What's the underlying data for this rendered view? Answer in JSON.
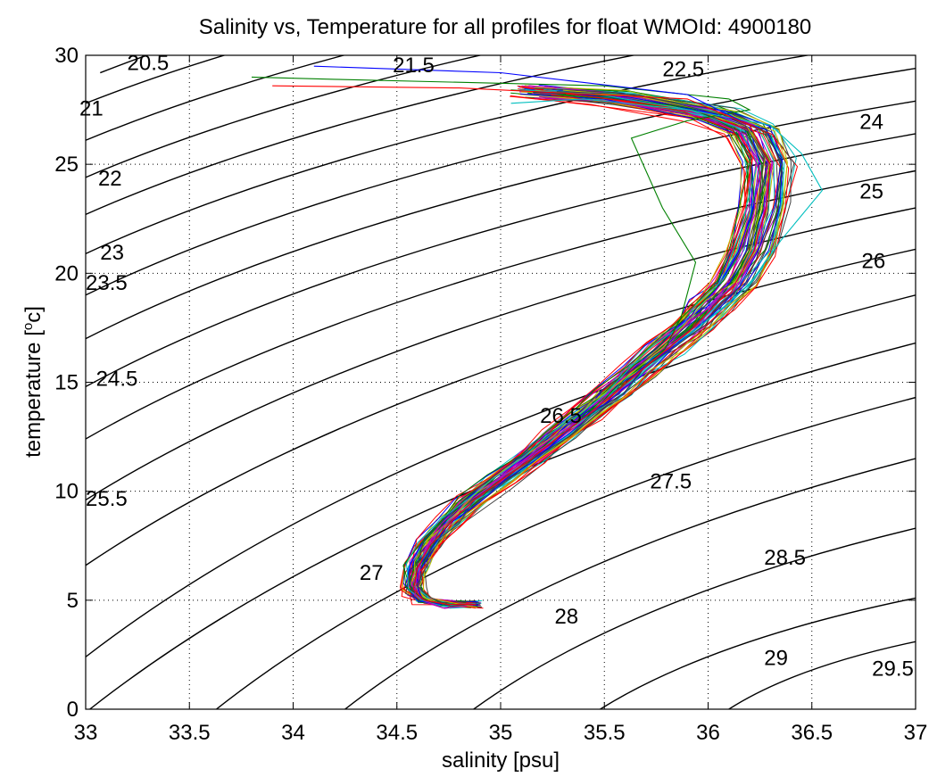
{
  "chart_data": {
    "type": "line",
    "title": "Salinity vs, Temperature for all profiles for float WMOId: 4900180",
    "xlabel": "salinity [psu]",
    "ylabel_main": "temperature [",
    "ylabel_sup": "o",
    "ylabel_end": "c]",
    "xlim": [
      33,
      37
    ],
    "ylim": [
      0,
      30
    ],
    "grid": "dotted",
    "x_ticks": [
      33,
      33.5,
      34,
      34.5,
      35,
      35.5,
      36,
      36.5,
      37
    ],
    "x_tick_labels": [
      "33",
      "33.5",
      "34",
      "34.5",
      "35",
      "35.5",
      "36",
      "36.5",
      "37"
    ],
    "y_ticks": [
      0,
      5,
      10,
      15,
      20,
      25,
      30
    ],
    "y_tick_labels": [
      "0",
      "5",
      "10",
      "15",
      "20",
      "25",
      "30"
    ],
    "density_contours": [
      {
        "level": "20.5",
        "x": [
          33.07,
          37
        ],
        "y": [
          29.2,
          37.5
        ]
      },
      {
        "level": "21",
        "x": [
          33,
          37
        ],
        "y": [
          27.8,
          36.3
        ]
      },
      {
        "level": "21.5",
        "x": [
          33,
          37
        ],
        "y": [
          26.1,
          35
        ]
      },
      {
        "level": "22",
        "x": [
          33,
          37
        ],
        "y": [
          24.4,
          33.6
        ]
      },
      {
        "level": "22.5",
        "x": [
          33,
          37
        ],
        "y": [
          22.7,
          32.2
        ]
      },
      {
        "level": "23",
        "x": [
          33,
          37
        ],
        "y": [
          20.9,
          30.8
        ]
      },
      {
        "level": "23.5",
        "x": [
          33,
          37
        ],
        "y": [
          19.0,
          29.4
        ]
      },
      {
        "level": "24",
        "x": [
          33,
          37
        ],
        "y": [
          17.0,
          27.9
        ]
      },
      {
        "level": "24.5",
        "x": [
          33,
          37
        ],
        "y": [
          14.8,
          26.4
        ]
      },
      {
        "level": "25",
        "x": [
          33,
          37
        ],
        "y": [
          12.4,
          24.7
        ]
      },
      {
        "level": "25.5",
        "x": [
          33,
          37
        ],
        "y": [
          9.6,
          23.0
        ]
      },
      {
        "level": "26",
        "x": [
          33,
          37
        ],
        "y": [
          6.6,
          21.1
        ]
      },
      {
        "level": "26.5",
        "x": [
          33,
          37
        ],
        "y": [
          2.4,
          19.0
        ]
      },
      {
        "level": "27",
        "x": [
          33.02,
          37
        ],
        "y": [
          0,
          16.8
        ]
      },
      {
        "level": "27.5",
        "x": [
          33.63,
          37
        ],
        "y": [
          0,
          14.3
        ]
      },
      {
        "level": "28",
        "x": [
          34.25,
          37
        ],
        "y": [
          0,
          11.5
        ]
      },
      {
        "level": "28.5",
        "x": [
          34.87,
          37
        ],
        "y": [
          0,
          8.3
        ]
      },
      {
        "level": "29",
        "x": [
          35.48,
          37
        ],
        "y": [
          0,
          5.1
        ]
      },
      {
        "level": "29.5",
        "x": [
          36.1,
          37
        ],
        "y": [
          0,
          3.1
        ]
      }
    ],
    "contour_labels": [
      {
        "text": "20.5",
        "x": 33.2,
        "y": 29.7
      },
      {
        "text": "21",
        "x": 32.97,
        "y": 27.6
      },
      {
        "text": "21.5",
        "x": 34.48,
        "y": 29.6
      },
      {
        "text": "22",
        "x": 33.06,
        "y": 24.4
      },
      {
        "text": "22.5",
        "x": 35.78,
        "y": 29.4
      },
      {
        "text": "23",
        "x": 33.07,
        "y": 21.0
      },
      {
        "text": "23.5",
        "x": 33.0,
        "y": 19.6
      },
      {
        "text": "24",
        "x": 36.73,
        "y": 27.0
      },
      {
        "text": "24.5",
        "x": 33.05,
        "y": 15.2
      },
      {
        "text": "25",
        "x": 36.73,
        "y": 23.8
      },
      {
        "text": "25.5",
        "x": 33.0,
        "y": 9.7
      },
      {
        "text": "26",
        "x": 36.74,
        "y": 20.6
      },
      {
        "text": "26.5",
        "x": 35.19,
        "y": 13.5
      },
      {
        "text": "27",
        "x": 34.32,
        "y": 6.3
      },
      {
        "text": "27.5",
        "x": 35.72,
        "y": 10.5
      },
      {
        "text": "28",
        "x": 35.26,
        "y": 4.3
      },
      {
        "text": "28.5",
        "x": 36.27,
        "y": 7.0
      },
      {
        "text": "29",
        "x": 36.27,
        "y": 2.4
      },
      {
        "text": "29.5",
        "x": 36.79,
        "y": 1.9
      }
    ],
    "profile_colors": [
      "#0000ff",
      "#008000",
      "#ff0000",
      "#00bfbf",
      "#bf00bf",
      "#bfbf00",
      "#404040"
    ],
    "profile_count": 70,
    "representative_profile": {
      "salinity": [
        34.88,
        34.75,
        34.63,
        34.58,
        34.6,
        34.66,
        34.75,
        34.86,
        35.0,
        35.15,
        35.28,
        35.42,
        35.55,
        35.67,
        35.8,
        35.93,
        36.03,
        36.13,
        36.22,
        36.28,
        36.3,
        36.22,
        36.02,
        35.58,
        35.2
      ],
      "temperature": [
        4.8,
        4.8,
        5.0,
        5.5,
        6.5,
        7.5,
        8.5,
        9.5,
        10.5,
        11.5,
        12.5,
        13.5,
        14.5,
        15.5,
        16.5,
        17.5,
        18.5,
        19.5,
        21.0,
        23.0,
        25.0,
        26.5,
        27.3,
        28.0,
        28.3
      ]
    },
    "outlier_profiles": [
      {
        "color": "#008000",
        "salinity": [
          34.88,
          34.75,
          34.63,
          34.58,
          34.6,
          34.66,
          34.75,
          34.86,
          35.0,
          35.15,
          35.28,
          35.42,
          35.55,
          35.67,
          35.79,
          35.87,
          35.94,
          35.78,
          35.63,
          35.9,
          36.2,
          36.1,
          35.5,
          34.2,
          33.8
        ],
        "temperature": [
          4.8,
          4.8,
          5.0,
          5.5,
          6.5,
          7.5,
          8.5,
          9.5,
          10.5,
          11.5,
          12.5,
          13.5,
          14.5,
          15.5,
          16.5,
          18.0,
          20.5,
          23.0,
          26.2,
          27.0,
          27.5,
          28.0,
          28.6,
          28.9,
          29.0
        ]
      },
      {
        "color": "#00bfbf",
        "salinity": [
          34.88,
          34.75,
          34.63,
          34.58,
          34.6,
          34.66,
          34.75,
          34.86,
          35.0,
          35.15,
          35.28,
          35.42,
          35.55,
          35.67,
          35.8,
          35.95,
          36.08,
          36.2,
          36.35,
          36.55,
          36.45,
          36.3,
          35.9,
          35.4,
          35.05
        ],
        "temperature": [
          4.8,
          4.8,
          5.0,
          5.5,
          6.5,
          7.5,
          8.5,
          9.5,
          10.5,
          11.5,
          12.5,
          13.5,
          14.5,
          15.5,
          16.5,
          17.5,
          18.5,
          19.5,
          21.5,
          23.8,
          25.5,
          26.8,
          27.5,
          28.0,
          27.8
        ]
      },
      {
        "color": "#0000ff",
        "salinity": [
          34.88,
          34.75,
          34.63,
          34.58,
          34.6,
          34.66,
          34.75,
          34.86,
          35.0,
          35.15,
          35.28,
          35.42,
          35.55,
          35.67,
          35.8,
          35.93,
          36.03,
          36.13,
          36.22,
          36.28,
          36.3,
          36.2,
          35.9,
          35.0,
          34.1
        ],
        "temperature": [
          4.8,
          4.8,
          5.0,
          5.5,
          6.5,
          7.5,
          8.5,
          9.5,
          10.5,
          11.5,
          12.5,
          13.5,
          14.5,
          15.5,
          16.5,
          17.5,
          18.5,
          19.5,
          21.0,
          23.0,
          25.0,
          26.8,
          28.2,
          29.2,
          29.5
        ]
      },
      {
        "color": "#ff0000",
        "salinity": [
          34.88,
          34.75,
          34.63,
          34.58,
          34.6,
          34.66,
          34.75,
          34.86,
          35.0,
          35.15,
          35.28,
          35.42,
          35.55,
          35.67,
          35.8,
          35.93,
          36.03,
          36.13,
          36.22,
          36.28,
          36.3,
          36.2,
          35.9,
          34.8,
          33.9
        ],
        "temperature": [
          4.8,
          4.8,
          5.0,
          5.5,
          6.5,
          7.5,
          8.5,
          9.5,
          10.5,
          11.5,
          12.5,
          13.5,
          14.5,
          15.5,
          16.5,
          17.5,
          18.5,
          19.5,
          21.0,
          23.0,
          25.0,
          26.8,
          28.0,
          28.5,
          28.6
        ]
      }
    ]
  }
}
